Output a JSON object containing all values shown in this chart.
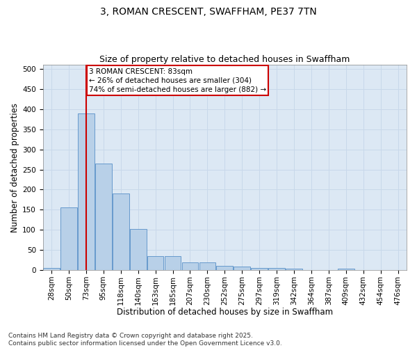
{
  "title1": "3, ROMAN CRESCENT, SWAFFHAM, PE37 7TN",
  "title2": "Size of property relative to detached houses in Swaffham",
  "xlabel": "Distribution of detached houses by size in Swaffham",
  "ylabel": "Number of detached properties",
  "bar_labels": [
    "28sqm",
    "50sqm",
    "73sqm",
    "95sqm",
    "118sqm",
    "140sqm",
    "163sqm",
    "185sqm",
    "207sqm",
    "230sqm",
    "252sqm",
    "275sqm",
    "297sqm",
    "319sqm",
    "342sqm",
    "364sqm",
    "387sqm",
    "409sqm",
    "432sqm",
    "454sqm",
    "476sqm"
  ],
  "bar_values": [
    5,
    155,
    390,
    265,
    190,
    103,
    35,
    35,
    20,
    20,
    10,
    8,
    5,
    5,
    3,
    0,
    0,
    3,
    0,
    0,
    0
  ],
  "bar_color": "#b8d0e8",
  "bar_edge_color": "#6699cc",
  "vline_x": 2,
  "vline_color": "#cc0000",
  "annotation_line1": "3 ROMAN CRESCENT: 83sqm",
  "annotation_line2": "← 26% of detached houses are smaller (304)",
  "annotation_line3": "74% of semi-detached houses are larger (882) →",
  "annotation_box_color": "#cc0000",
  "ylim": [
    0,
    510
  ],
  "yticks": [
    0,
    50,
    100,
    150,
    200,
    250,
    300,
    350,
    400,
    450,
    500
  ],
  "grid_color": "#c8d8ea",
  "background_color": "#dce8f4",
  "footer1": "Contains HM Land Registry data © Crown copyright and database right 2025.",
  "footer2": "Contains public sector information licensed under the Open Government Licence v3.0.",
  "title_fontsize": 10,
  "subtitle_fontsize": 9,
  "axis_label_fontsize": 8.5,
  "tick_fontsize": 7.5,
  "footer_fontsize": 6.5,
  "annot_fontsize": 7.5
}
